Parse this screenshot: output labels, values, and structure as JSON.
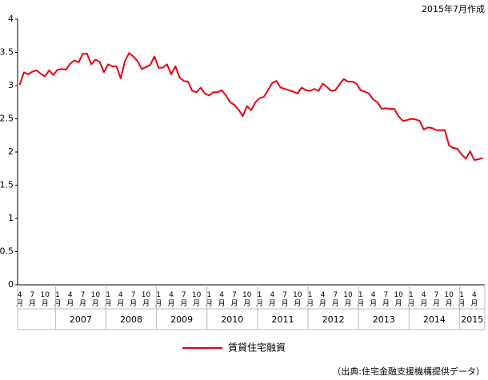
{
  "chart_data": {
    "type": "line",
    "note": "2015年7月作成",
    "source": "（出典:住宅金融支援機構提供データ）",
    "categories": [
      "4月",
      null,
      null,
      "7月",
      null,
      null,
      "10月",
      null,
      null,
      "1月",
      null,
      null,
      "4月",
      null,
      null,
      "7月",
      null,
      null,
      "10月",
      null,
      null,
      "1月",
      null,
      null,
      "4月",
      null,
      null,
      "7月",
      null,
      null,
      "10月",
      null,
      null,
      "1月",
      null,
      null,
      "4月",
      null,
      null,
      "7月",
      null,
      null,
      "10月",
      null,
      null,
      "1月",
      null,
      null,
      "4月",
      null,
      null,
      "7月",
      null,
      null,
      "10月",
      null,
      null,
      "1月",
      null,
      null,
      "4月",
      null,
      null,
      "7月",
      null,
      null,
      "10月",
      null,
      null,
      "1月",
      null,
      null,
      "4月",
      null,
      null,
      "7月",
      null,
      null,
      "10月",
      null,
      null,
      "1月",
      null,
      null,
      "4月",
      null,
      null,
      "7月",
      null,
      null,
      "10月",
      null,
      null,
      "1月",
      null,
      null,
      "4月",
      null,
      null,
      "7月",
      null,
      null,
      "10月",
      null,
      null,
      "1月",
      null,
      null,
      "4月",
      null,
      null
    ],
    "x_groups": [
      "2007",
      "2008",
      "2009",
      "2010",
      "2011",
      "2012",
      "2013",
      "2014",
      "2015"
    ],
    "series": [
      {
        "name": "賃貸住宅融資",
        "color": "#e60012",
        "values": [
          3.01,
          3.2,
          3.17,
          3.21,
          3.23,
          3.18,
          3.14,
          3.23,
          3.16,
          3.24,
          3.25,
          3.24,
          3.33,
          3.38,
          3.35,
          3.48,
          3.48,
          3.32,
          3.39,
          3.36,
          3.2,
          3.32,
          3.29,
          3.29,
          3.11,
          3.37,
          3.49,
          3.44,
          3.37,
          3.25,
          3.28,
          3.31,
          3.44,
          3.27,
          3.27,
          3.32,
          3.17,
          3.29,
          3.12,
          3.07,
          3.06,
          2.92,
          2.9,
          2.97,
          2.88,
          2.85,
          2.9,
          2.9,
          2.93,
          2.85,
          2.75,
          2.71,
          2.64,
          2.54,
          2.69,
          2.63,
          2.75,
          2.81,
          2.83,
          2.93,
          3.04,
          3.07,
          2.97,
          2.95,
          2.93,
          2.91,
          2.88,
          2.97,
          2.93,
          2.92,
          2.95,
          2.92,
          3.03,
          2.98,
          2.92,
          2.93,
          3.02,
          3.1,
          3.06,
          3.06,
          3.03,
          2.93,
          2.91,
          2.88,
          2.79,
          2.75,
          2.65,
          2.66,
          2.65,
          2.65,
          2.54,
          2.47,
          2.48,
          2.5,
          2.49,
          2.47,
          2.34,
          2.37,
          2.36,
          2.33,
          2.33,
          2.33,
          2.1,
          2.06,
          2.05,
          1.96,
          1.9,
          2.01,
          1.88,
          1.89,
          1.91
        ]
      }
    ],
    "ylim": [
      0,
      4
    ],
    "yticks": [
      0,
      0.5,
      1,
      1.5,
      2,
      2.5,
      3,
      3.5,
      4
    ]
  }
}
